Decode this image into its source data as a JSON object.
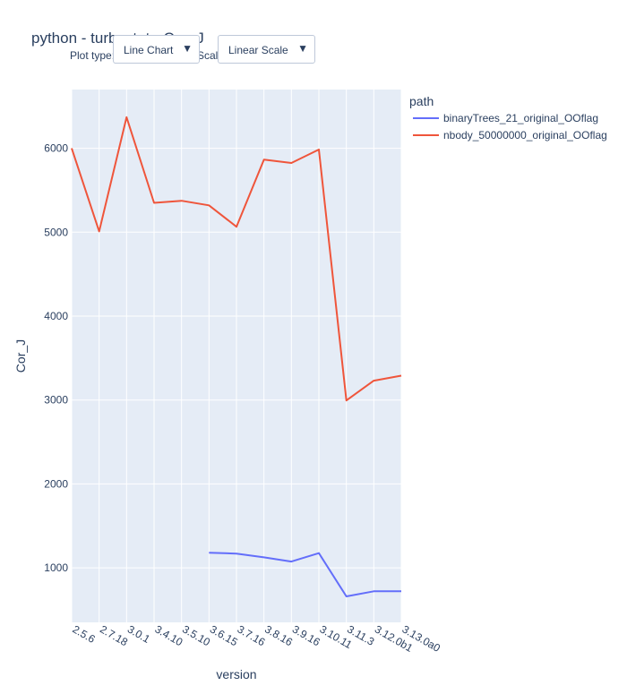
{
  "header": {
    "title": "python - turbostat - Cor_J"
  },
  "controls": {
    "plot_type_label": "Plot type:",
    "scale_label": "Scale:",
    "plot_type_value": "Line Chart",
    "scale_value": "Linear Scale"
  },
  "colors": {
    "plot_bg": "#e5ecf6",
    "grid": "#ffffff",
    "series_1": "#636efa",
    "series_2": "#ef553b"
  },
  "chart_data": {
    "type": "line",
    "title": "python - turbostat - Cor_J",
    "xlabel": "version",
    "ylabel": "Cor_J",
    "ylim": [
      350,
      6700
    ],
    "yticks": [
      1000,
      2000,
      3000,
      4000,
      5000,
      6000
    ],
    "grid": true,
    "legend_title": "path",
    "legend_position": "top-right",
    "categories": [
      "2.5.6",
      "2.7.18",
      "3.0.1",
      "3.4.10",
      "3.5.10",
      "3.6.15",
      "3.7.16",
      "3.8.16",
      "3.9.16",
      "3.10.11",
      "3.11.3",
      "3.12.0b1",
      "3.13.0a0"
    ],
    "series": [
      {
        "name": "binaryTrees_21_original_OOflag",
        "color": "#636efa",
        "values": [
          null,
          null,
          null,
          null,
          null,
          1180,
          1170,
          1125,
          1075,
          1175,
          660,
          720,
          720
        ]
      },
      {
        "name": "nbody_50000000_original_OOflag",
        "color": "#ef553b",
        "values": [
          6000,
          5010,
          6370,
          5350,
          5375,
          5320,
          5065,
          5865,
          5825,
          5985,
          2995,
          3230,
          3290
        ]
      }
    ]
  }
}
